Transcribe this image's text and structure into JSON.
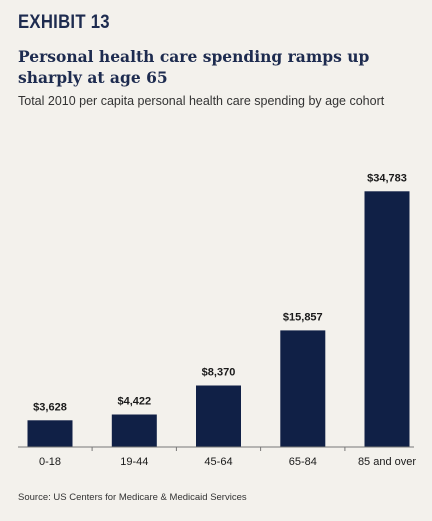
{
  "header": {
    "exhibit_label": "EXHIBIT 13",
    "title": "Personal health care spending ramps up sharply at age 65",
    "subtitle": "Total 2010 per capita personal health care spending by age cohort"
  },
  "source": "Source: US Centers for Medicare & Medicaid Services",
  "colors": {
    "bar": "#102046",
    "axis": "#777777",
    "background": "#f3f1ec"
  },
  "chart_data": {
    "type": "bar",
    "title": "Personal health care spending ramps up sharply at age 65",
    "subtitle": "Total 2010 per capita personal health care spending by age cohort",
    "xlabel": "",
    "ylabel": "",
    "categories": [
      "0-18",
      "19-44",
      "45-64",
      "65-84",
      "85 and over"
    ],
    "values": [
      3628,
      4422,
      8370,
      15857,
      34783
    ],
    "data_labels": [
      "$3,628",
      "$4,422",
      "$8,370",
      "$15,857",
      "$34,783"
    ],
    "ylim": [
      0,
      37000
    ],
    "grid": false,
    "legend": "none"
  }
}
